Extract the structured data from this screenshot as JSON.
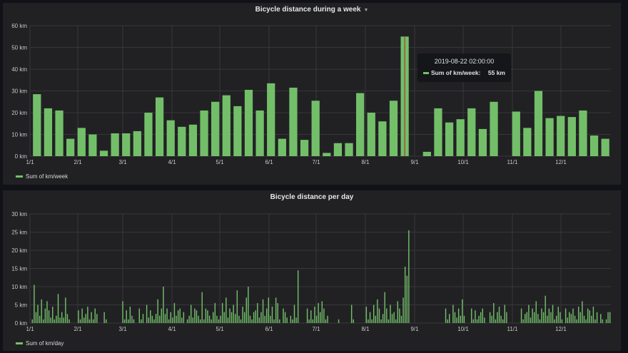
{
  "colors": {
    "series": "#73bf69",
    "background": "#111217",
    "panel": "#212124",
    "grid": "#36373a",
    "crosshair": "#c4162a"
  },
  "panels": [
    {
      "title": "Bicycle distance during a week",
      "legend": "Sum of km/week"
    },
    {
      "title": "Bicycle distance per day",
      "legend": "Sum of km/day"
    }
  ],
  "tooltip": {
    "time": "2019-08-22 02:00:00",
    "series": "Sum of km/week:",
    "value": "55 km"
  },
  "chart_data": [
    {
      "type": "bar",
      "title": "Bicycle distance during a week",
      "series": [
        {
          "name": "Sum of km/week",
          "values": [
            28.5,
            22,
            21,
            8,
            13,
            10,
            2.5,
            10.5,
            10.5,
            11.5,
            20,
            27,
            16.5,
            13.5,
            14.5,
            21,
            25,
            28,
            23,
            30.5,
            21,
            33.5,
            8,
            31.5,
            7.5,
            25.5,
            1.5,
            6,
            6,
            29,
            20,
            16,
            25.5,
            55,
            0,
            2,
            22,
            15.5,
            17,
            22,
            12.5,
            25,
            0,
            20.5,
            13,
            30,
            17.5,
            18.5,
            18,
            21,
            9.5,
            8
          ]
        }
      ],
      "ylim": [
        0,
        60
      ],
      "yticks": [
        "0 km",
        "10 km",
        "20 km",
        "30 km",
        "40 km",
        "50 km",
        "60 km"
      ],
      "xticks": [
        "1/1",
        "2/1",
        "3/1",
        "4/1",
        "5/1",
        "6/1",
        "7/1",
        "8/1",
        "9/1",
        "10/1",
        "11/1",
        "12/1"
      ]
    },
    {
      "type": "bar",
      "title": "Bicycle distance per day",
      "series": [
        {
          "name": "Sum of km/day",
          "values": [
            1,
            10.5,
            3,
            5,
            2,
            6.5,
            1,
            4,
            6,
            3.5,
            1.5,
            4.5,
            1,
            2,
            8,
            1.5,
            3,
            1.5,
            7,
            2.5,
            1,
            0,
            0,
            0,
            0,
            3.5,
            1,
            4,
            1.5,
            2.5,
            4.5,
            1,
            3,
            1,
            4,
            2.5,
            0,
            0,
            0,
            3,
            1,
            0,
            0,
            0,
            0,
            0,
            0,
            0,
            0,
            6,
            1,
            3.5,
            1,
            4.5,
            2,
            1,
            0,
            0,
            4,
            1,
            2.5,
            0,
            5,
            1.5,
            3.5,
            2,
            1,
            2.5,
            6.5,
            2,
            4,
            10,
            2.5,
            4,
            1,
            3,
            1.5,
            5.5,
            2,
            3.5,
            4,
            1.5,
            3,
            0,
            1,
            2,
            5,
            1.5,
            4,
            3.5,
            2,
            1,
            8.5,
            1,
            4,
            3.5,
            2,
            1,
            3,
            5.5,
            2,
            1,
            2,
            5.5,
            3,
            7,
            1.5,
            4,
            3,
            5,
            2.5,
            9,
            2,
            1,
            4.5,
            3,
            7,
            10,
            2,
            1,
            3,
            3.5,
            5.5,
            1.5,
            3,
            6.5,
            2,
            4,
            7,
            2,
            4.5,
            1,
            7,
            5.5,
            1,
            0,
            4,
            3,
            1.5,
            0,
            2,
            1,
            5,
            1.5,
            14.5,
            0,
            0,
            0,
            0,
            4,
            1,
            3.5,
            1,
            4.5,
            2,
            5.5,
            3,
            6,
            4,
            1,
            2,
            0,
            0,
            0,
            0,
            0,
            1,
            0,
            0,
            0,
            0,
            0,
            0,
            5,
            1,
            0,
            0,
            0,
            0,
            0,
            0,
            4.5,
            1,
            3,
            1,
            5,
            2,
            6.5,
            4,
            1,
            2.5,
            8.5,
            4,
            1,
            5,
            2.5,
            3,
            1,
            6,
            4,
            2,
            7,
            15.5,
            13,
            25.5,
            0,
            0,
            0,
            0,
            0,
            0,
            0,
            0,
            0,
            0,
            0,
            0,
            0,
            0,
            0,
            0,
            0,
            0,
            0,
            4,
            1,
            2.5,
            0,
            5,
            3,
            1.5,
            4,
            2,
            6.5,
            2,
            0,
            0,
            0,
            4,
            1,
            3.5,
            1,
            2,
            3,
            4,
            1.5,
            0,
            0,
            3,
            2,
            5.5,
            1,
            3,
            4.5,
            2,
            1,
            5,
            3,
            0,
            0,
            0,
            0,
            0,
            0,
            0,
            4,
            1,
            2.5,
            3,
            5,
            1.5,
            4,
            3,
            6,
            2.5,
            1,
            4,
            3,
            7.5,
            2,
            4,
            3,
            5,
            1,
            2,
            4.5,
            3,
            1,
            0,
            4,
            1.5,
            3,
            2.5,
            4,
            2,
            1,
            4.5,
            3,
            6,
            2,
            1,
            4,
            3.5,
            2,
            4.5,
            1,
            3,
            0,
            2.5,
            1,
            0,
            1,
            3,
            3
          ]
        }
      ],
      "ylim": [
        0,
        30
      ],
      "yticks": [
        "0 km",
        "5 km",
        "10 km",
        "15 km",
        "20 km",
        "25 km",
        "30 km"
      ],
      "xticks": [
        "1/1",
        "2/1",
        "3/1",
        "4/1",
        "5/1",
        "6/1",
        "7/1",
        "8/1",
        "9/1",
        "10/1",
        "11/1",
        "12/1"
      ]
    }
  ]
}
